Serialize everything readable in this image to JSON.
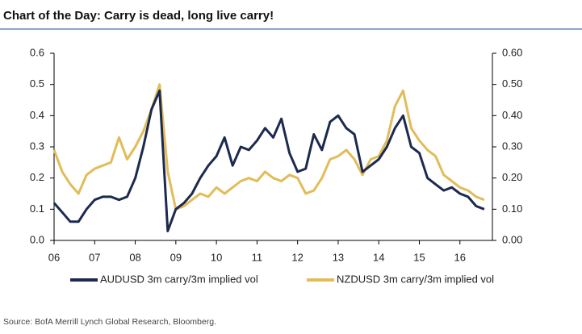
{
  "chart_data": {
    "type": "line",
    "title": "Chart of the Day: Carry is dead, long live carry!",
    "source": "Source: BofA Merrill Lynch Global Research, Bloomberg.",
    "x": [
      6,
      6.2,
      6.4,
      6.6,
      6.8,
      7,
      7.2,
      7.4,
      7.6,
      7.8,
      8,
      8.2,
      8.4,
      8.6,
      8.8,
      9,
      9.2,
      9.4,
      9.6,
      9.8,
      10,
      10.2,
      10.4,
      10.6,
      10.8,
      11,
      11.2,
      11.4,
      11.6,
      11.8,
      12,
      12.2,
      12.4,
      12.6,
      12.8,
      13,
      13.2,
      13.4,
      13.6,
      13.8,
      14,
      14.2,
      14.4,
      14.6,
      14.8,
      15,
      15.2,
      15.4,
      15.6,
      15.8,
      16,
      16.2,
      16.4,
      16.6
    ],
    "series": [
      {
        "name": "AUDUSD 3m carry/3m implied vol",
        "color": "#1b2a4e",
        "values": [
          0.12,
          0.09,
          0.06,
          0.06,
          0.1,
          0.13,
          0.14,
          0.14,
          0.13,
          0.14,
          0.2,
          0.3,
          0.42,
          0.48,
          0.03,
          0.1,
          0.12,
          0.15,
          0.2,
          0.24,
          0.27,
          0.33,
          0.24,
          0.3,
          0.29,
          0.32,
          0.36,
          0.33,
          0.39,
          0.28,
          0.22,
          0.23,
          0.34,
          0.29,
          0.38,
          0.4,
          0.36,
          0.34,
          0.22,
          0.24,
          0.26,
          0.3,
          0.36,
          0.4,
          0.3,
          0.28,
          0.2,
          0.18,
          0.16,
          0.17,
          0.15,
          0.14,
          0.11,
          0.1
        ]
      },
      {
        "name": "NZDUSD 3m carry/3m implied vol",
        "color": "#e2bc58",
        "values": [
          0.29,
          0.22,
          0.18,
          0.15,
          0.21,
          0.23,
          0.24,
          0.25,
          0.33,
          0.26,
          0.3,
          0.35,
          0.42,
          0.5,
          0.22,
          0.1,
          0.11,
          0.13,
          0.15,
          0.14,
          0.17,
          0.15,
          0.17,
          0.19,
          0.2,
          0.19,
          0.22,
          0.2,
          0.19,
          0.21,
          0.2,
          0.15,
          0.16,
          0.2,
          0.26,
          0.27,
          0.29,
          0.26,
          0.21,
          0.26,
          0.27,
          0.32,
          0.43,
          0.48,
          0.36,
          0.32,
          0.29,
          0.27,
          0.21,
          0.19,
          0.17,
          0.16,
          0.14,
          0.13
        ]
      }
    ],
    "xlim": [
      6,
      16.8
    ],
    "xticks": [
      {
        "value": 6,
        "label": "06"
      },
      {
        "value": 7,
        "label": "07"
      },
      {
        "value": 8,
        "label": "08"
      },
      {
        "value": 9,
        "label": "09"
      },
      10,
      11,
      12,
      13,
      14,
      15,
      16
    ],
    "ylim": [
      0,
      0.6
    ],
    "yticks": [
      {
        "value": 0,
        "label": "0.0"
      },
      0.1,
      0.2,
      0.3,
      0.4,
      0.5,
      0.6
    ],
    "y2lim": [
      0,
      0.6
    ],
    "y2ticks": [
      {
        "value": 0,
        "label": "0.00"
      },
      {
        "value": 0.1,
        "label": "0.10"
      },
      {
        "value": 0.2,
        "label": "0.20"
      },
      {
        "value": 0.3,
        "label": "0.30"
      },
      {
        "value": 0.4,
        "label": "0.40"
      },
      {
        "value": 0.5,
        "label": "0.50"
      },
      {
        "value": 0.6,
        "label": "0.60"
      }
    ],
    "legend": "bottom"
  }
}
